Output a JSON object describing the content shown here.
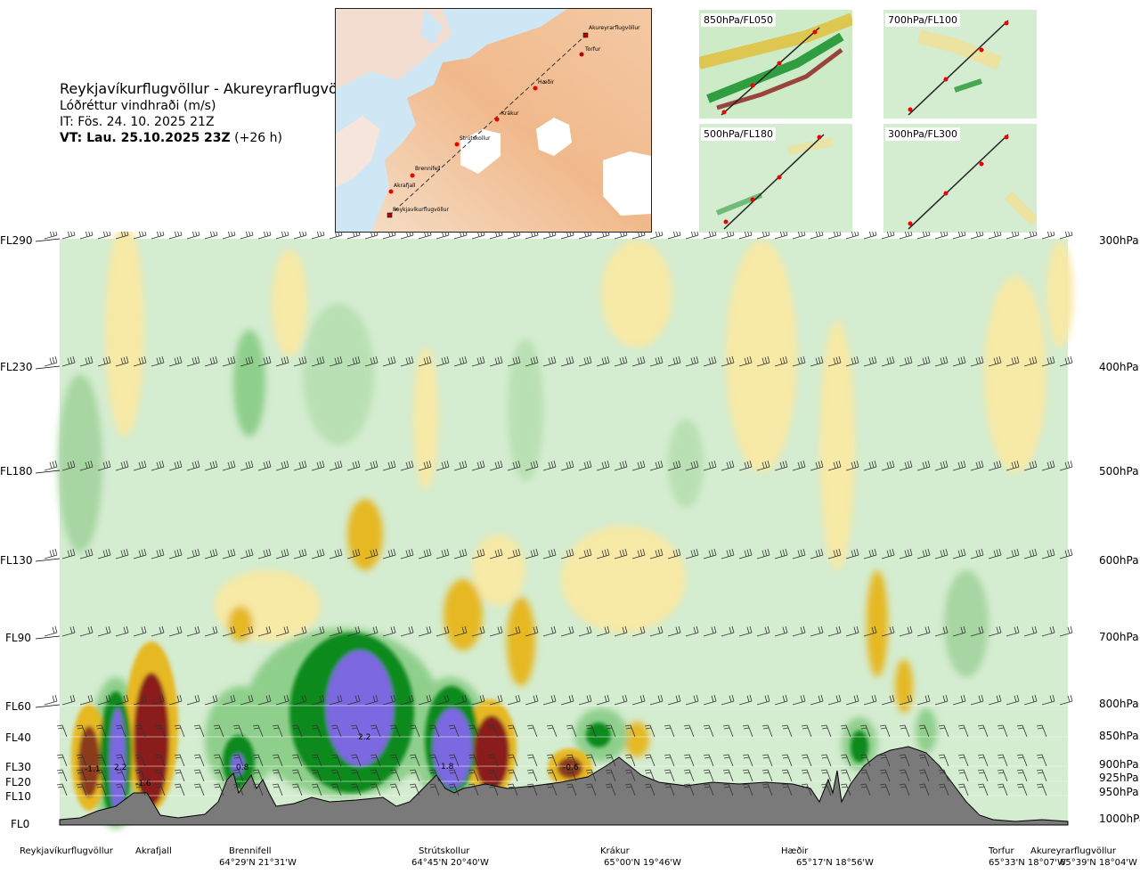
{
  "header": {
    "route": "Reykjavíkurflugvöllur - Akureyrarflugvöllur",
    "parameter": "Lóðréttur vindhraði (m/s)",
    "issue_time": "IT: Fös. 24. 10. 2025 21Z",
    "valid_time_bold": "VT: Lau. 25.10.2025 23Z",
    "valid_offset": "(+26 h)"
  },
  "map": {
    "waypoints": [
      "Akureyrarflugvöllur",
      "Torfur",
      "Hæðir",
      "Krákur",
      "Strútskollur",
      "Brennifell",
      "Akrafjall",
      "Reykjavíkurflugvöllur"
    ]
  },
  "thumbnails": [
    {
      "label": "850hPa/FL050"
    },
    {
      "label": "700hPa/FL100"
    },
    {
      "label": "500hPa/FL180"
    },
    {
      "label": "300hPa/FL300"
    }
  ],
  "colors": {
    "strong_down": "#7b68e0",
    "down": "#0a8a1f",
    "weak_down": "#8fcf8c",
    "background": "#d4ecd0",
    "weak_up": "#f7e9a6",
    "up": "#e6b820",
    "strong_up": "#8b1a1a",
    "terrain": "#7a7a7a"
  },
  "chart_data": {
    "type": "heatmap",
    "title": "Lóðréttur vindhraði (m/s)",
    "flight_levels": [
      {
        "label": "FL290",
        "pressure": "300hPa"
      },
      {
        "label": "FL230",
        "pressure": "400hPa"
      },
      {
        "label": "FL180",
        "pressure": "500hPa"
      },
      {
        "label": "FL130",
        "pressure": "600hPa"
      },
      {
        "label": "FL90",
        "pressure": "700hPa"
      },
      {
        "label": "FL60",
        "pressure": "800hPa"
      },
      {
        "label": "FL40",
        "pressure": "850hPa"
      },
      {
        "label": "FL30",
        "pressure": "900hPa"
      },
      {
        "label": "FL20",
        "pressure": "925hPa"
      },
      {
        "label": "FL10",
        "pressure": "950hPa"
      },
      {
        "label": "FL0",
        "pressure": "1000hPa"
      }
    ],
    "waypoints": [
      {
        "name": "Reykjavíkurflugvöllur",
        "coord": ""
      },
      {
        "name": "Akrafjall",
        "coord": ""
      },
      {
        "name": "Brennifell",
        "coord": "64°29'N 21°31'W"
      },
      {
        "name": "Strútskollur",
        "coord": "64°45'N 20°40'W"
      },
      {
        "name": "Krákur",
        "coord": "65°00'N 19°46'W"
      },
      {
        "name": "Hæðir",
        "coord": "65°17'N 18°56'W"
      },
      {
        "name": "Torfur",
        "coord": "65°33'N 18°07'W"
      },
      {
        "name": "Akureyrarflugvöllur",
        "coord": "65°39'N 18°04'W"
      }
    ],
    "value_labels": [
      "-1.1",
      "2.2",
      "-1.6",
      "0.8",
      "2.2",
      "1.8",
      "-0.6"
    ]
  }
}
